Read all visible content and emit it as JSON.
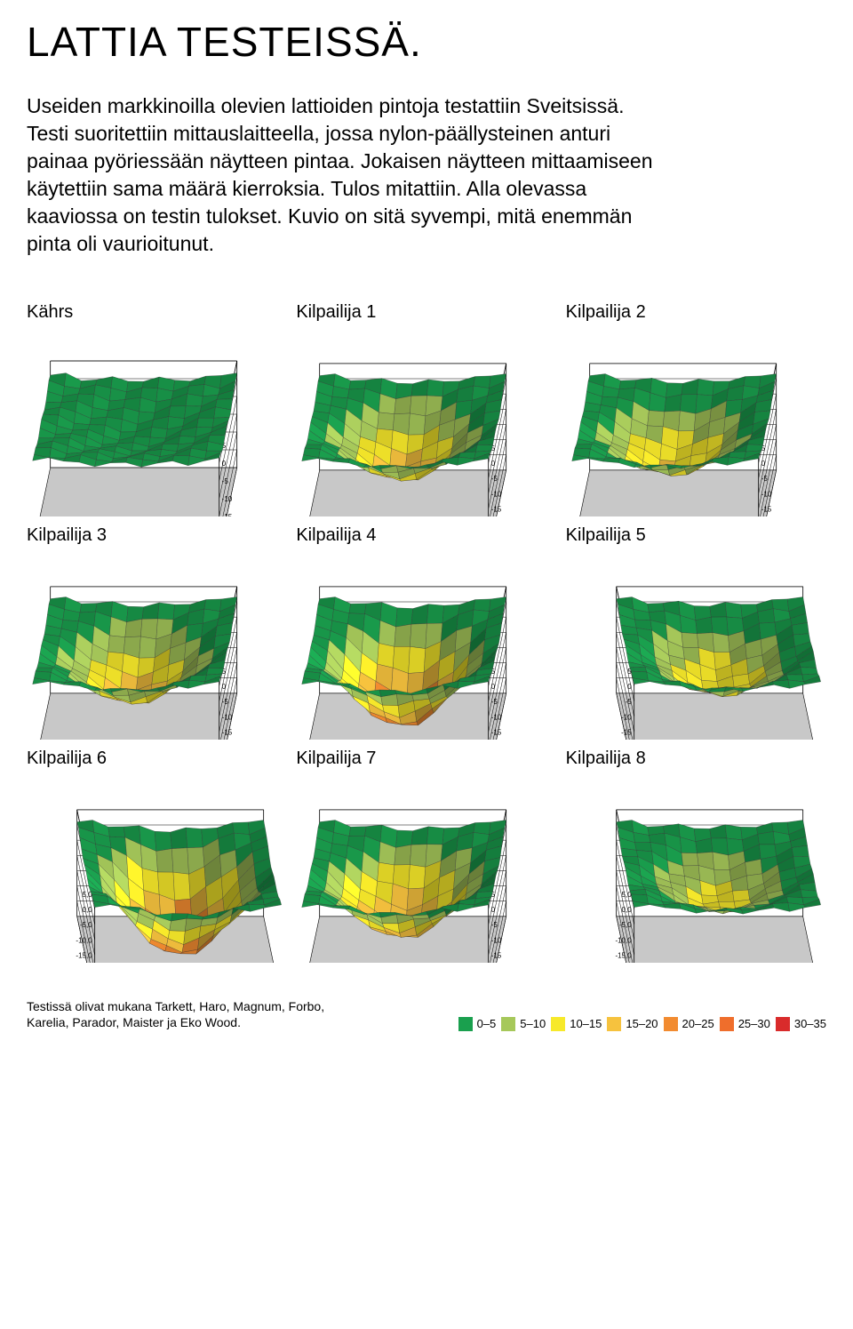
{
  "title": "LATTIA TESTEISSÄ.",
  "intro": "Useiden markkinoilla olevien lattioiden pintoja testattiin Sveitsissä. Testi suoritettiin mittauslaitteella, jossa nylon-päällysteinen anturi painaa pyöriessään näytteen pintaa. Jokaisen näytteen mittaamiseen käytettiin sama määrä kierroksia. Tulos mitattiin.\nAlla olevassa kaaviossa on testin tulokset. Kuvio on sitä syvempi, mitä enemmän pinta oli vaurioitunut.",
  "background_color": "#ffffff",
  "text_color": "#000000",
  "title_fontsize": 46,
  "intro_fontsize": 23,
  "chart_title_fontsize": 20,
  "axis_label_fontsize": 8,
  "axis_line_color": "#000000",
  "grid_line_color": "#000000",
  "box_floor_color": "#c8c8c8",
  "legend": [
    {
      "range": "0–5",
      "color": "#1aa04e"
    },
    {
      "range": "5–10",
      "color": "#a6c85a"
    },
    {
      "range": "10–15",
      "color": "#f7e92a"
    },
    {
      "range": "15–20",
      "color": "#f6c23e"
    },
    {
      "range": "20–25",
      "color": "#f28b30"
    },
    {
      "range": "25–30",
      "color": "#ef6e2c"
    },
    {
      "range": "30–35",
      "color": "#d92b2b"
    }
  ],
  "charts": [
    {
      "label": "Kährs",
      "type": "3d-surface",
      "z_axis_side": "right",
      "z_ticks": [
        5,
        0,
        -5,
        -10,
        -15,
        -20,
        -25
      ],
      "z_tick_labels": [
        "5",
        "0",
        "-5",
        "-10",
        "-15",
        "-20",
        "-25"
      ],
      "zlim": [
        -25,
        5
      ],
      "depth": 5,
      "grid": [
        13,
        13
      ]
    },
    {
      "label": "Kilpailija 1",
      "type": "3d-surface",
      "z_axis_side": "right",
      "z_ticks": [
        5,
        0,
        -5,
        -10,
        -15,
        -20,
        -25,
        -30
      ],
      "z_tick_labels": [
        "5",
        "0",
        "-5",
        "-10",
        "-15",
        "-20",
        "-25",
        "-30"
      ],
      "zlim": [
        -30,
        5
      ],
      "depth": 18,
      "grid": [
        13,
        13
      ]
    },
    {
      "label": "Kilpailija 2",
      "type": "3d-surface",
      "z_axis_side": "right",
      "z_ticks": [
        5,
        0,
        -5,
        -10,
        -15,
        -20,
        -25,
        -30
      ],
      "z_tick_labels": [
        "5",
        "0",
        "-5",
        "-10",
        "-15",
        "-20",
        "-25",
        "-30"
      ],
      "zlim": [
        -30,
        5
      ],
      "depth": 16,
      "grid": [
        13,
        13
      ]
    },
    {
      "label": "Kilpailija 3",
      "type": "3d-surface",
      "z_axis_side": "right",
      "z_ticks": [
        5,
        0,
        -5,
        -10,
        -15,
        -20,
        -25,
        -30
      ],
      "z_tick_labels": [
        "5",
        "0",
        "-5",
        "-10",
        "-15",
        "-20",
        "-25",
        "-30"
      ],
      "zlim": [
        -30,
        5
      ],
      "depth": 18,
      "grid": [
        13,
        13
      ]
    },
    {
      "label": "Kilpailija 4",
      "type": "3d-surface",
      "z_axis_side": "right",
      "z_ticks": [
        5,
        0,
        -5,
        -10,
        -15,
        -20,
        -25,
        -30
      ],
      "z_tick_labels": [
        "5",
        "0",
        "-5",
        "-10",
        "-15",
        "-20",
        "-25",
        "-30"
      ],
      "zlim": [
        -30,
        5
      ],
      "depth": 26,
      "grid": [
        13,
        13
      ]
    },
    {
      "label": "Kilpailija 5",
      "type": "3d-surface",
      "z_axis_side": "left",
      "z_ticks": [
        5,
        0,
        -5,
        -10,
        -15,
        -20,
        -25,
        -30
      ],
      "z_tick_labels": [
        "5",
        "0",
        "-5",
        "-10",
        "-15",
        "-20",
        "-25",
        "-30"
      ],
      "zlim": [
        -30,
        5
      ],
      "depth": 15,
      "grid": [
        13,
        13
      ]
    },
    {
      "label": "Kilpailija 6",
      "type": "3d-surface",
      "z_axis_side": "left",
      "z_ticks": [
        5,
        0,
        -5,
        -10,
        -15,
        -20,
        -25,
        -30
      ],
      "z_tick_labels": [
        "5,0",
        "0,0",
        "-5,0",
        "-10,0",
        "-15,0",
        "-20,0",
        "-25,0",
        "-30,0"
      ],
      "zlim": [
        -30,
        5
      ],
      "depth": 28,
      "grid": [
        13,
        13
      ]
    },
    {
      "label": "Kilpailija 7",
      "type": "3d-surface",
      "z_axis_side": "right",
      "z_ticks": [
        5,
        0,
        -5,
        -10,
        -15,
        -20,
        -25,
        -30
      ],
      "z_tick_labels": [
        "5",
        "0",
        "-5",
        "-10",
        "-15",
        "-20",
        "-25",
        "-30"
      ],
      "zlim": [
        -30,
        5
      ],
      "depth": 22,
      "grid": [
        13,
        13
      ]
    },
    {
      "label": "Kilpailija 8",
      "type": "3d-surface",
      "z_axis_side": "left",
      "z_ticks": [
        5,
        0,
        -5,
        -10,
        -15,
        -20,
        -25,
        -30
      ],
      "z_tick_labels": [
        "5,0",
        "0,0",
        "-5,0",
        "-10,0",
        "-15,0",
        "-20,0",
        "-25,0",
        "-30,0"
      ],
      "zlim": [
        -30,
        5
      ],
      "depth": 12,
      "grid": [
        13,
        13
      ]
    }
  ],
  "footnote": "Testissä olivat mukana Tarkett, Haro, Magnum, Forbo, Karelia, Parador, Maister ja Eko Wood."
}
